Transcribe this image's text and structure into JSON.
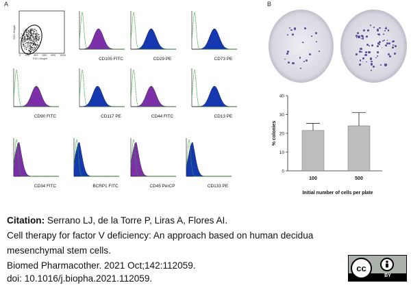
{
  "panels": {
    "a": "A",
    "b": "B"
  },
  "scatter": {
    "ylabel": "SSC-Height",
    "xlabel": "FSC-Height",
    "ticks": [
      "0",
      "200",
      "400",
      "600",
      "800",
      "1000"
    ]
  },
  "histograms": [
    {
      "label": "CD105 FITC",
      "color": "#7b2fa8"
    },
    {
      "label": "CD29 PE",
      "color": "#1537b0"
    },
    {
      "label": "CD73 PE",
      "color": "#1537b0"
    },
    {
      "label": "CD90 FITC",
      "color": "#7b2fa8"
    },
    {
      "label": "CD117 PE",
      "color": "#1537b0"
    },
    {
      "label": "CD44 FITC",
      "color": "#7b2fa8"
    },
    {
      "label": "CD13 PE",
      "color": "#1537b0"
    },
    {
      "label": "CD34 FITC",
      "color": "#7b2fa8"
    },
    {
      "label": "BCRP1 FITC",
      "color": "#1537b0"
    },
    {
      "label": "CD45 PerCP",
      "color": "#7b2fa8"
    },
    {
      "label": "CD133 PE",
      "color": "#1537b0"
    }
  ],
  "chart_data": {
    "type": "bar",
    "categories": [
      "100",
      "500"
    ],
    "values": [
      21.5,
      24
    ],
    "errors": [
      3.8,
      7
    ],
    "ylabel": "% colonies",
    "xlabel": "Initial number of cells per plate",
    "ylim": [
      0,
      40
    ],
    "yticks": [
      "0",
      "10",
      "20",
      "30",
      "40"
    ],
    "bar_color": "#bdbdbd"
  },
  "citation": {
    "label": "Citation:",
    "authors": " Serrano LJ, de la Torre P, Liras A, Flores AI.",
    "title_line1": "Cell therapy for factor V deficiency: An approach based on human decidua",
    "title_line2": "mesenchymal stem cells.",
    "journal": "Biomed Pharmacother. 2021 Oct;142:112059.",
    "doi": "doi: 10.1016/j.biopha.2021.112059."
  },
  "license": {
    "cc": "cc",
    "by": "BY"
  }
}
